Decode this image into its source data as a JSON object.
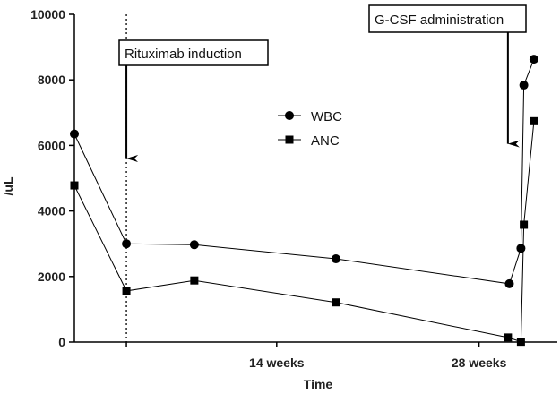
{
  "chart_data": {
    "type": "line",
    "xlabel": "Time",
    "ylabel": "/uL",
    "ylim": [
      0,
      10000
    ],
    "yticks": [
      0,
      2000,
      4000,
      6000,
      8000,
      10000
    ],
    "x_range": [
      0,
      31
    ],
    "x_tick_labels": [
      {
        "x": 14,
        "label": "14 weeks"
      },
      {
        "x": 28,
        "label": "28 weeks"
      }
    ],
    "series": [
      {
        "name": "WBC",
        "marker": "circle",
        "points": [
          {
            "x": 0,
            "y": 6350
          },
          {
            "x": 3.6,
            "y": 3000
          },
          {
            "x": 8.3,
            "y": 2970
          },
          {
            "x": 18.1,
            "y": 2540
          },
          {
            "x": 30.1,
            "y": 1780
          },
          {
            "x": 30.9,
            "y": 2860
          },
          {
            "x": 31.1,
            "y": 7840
          },
          {
            "x": 31.8,
            "y": 8630
          }
        ]
      },
      {
        "name": "ANC",
        "marker": "square",
        "points": [
          {
            "x": 0,
            "y": 4780
          },
          {
            "x": 3.6,
            "y": 1560
          },
          {
            "x": 8.3,
            "y": 1880
          },
          {
            "x": 18.1,
            "y": 1210
          },
          {
            "x": 30.0,
            "y": 140
          },
          {
            "x": 30.9,
            "y": 10
          },
          {
            "x": 31.1,
            "y": 3580
          },
          {
            "x": 31.8,
            "y": 6740
          }
        ]
      }
    ],
    "annotations": [
      {
        "label": "Rituximab induction",
        "x": 3.6,
        "arrow_to_y": 5600,
        "line": "dotted-vertical"
      },
      {
        "label": "G-CSF administration",
        "x": 30.0,
        "arrow_to_y": 6050
      }
    ],
    "legend_position": "center-top",
    "grid": false
  }
}
